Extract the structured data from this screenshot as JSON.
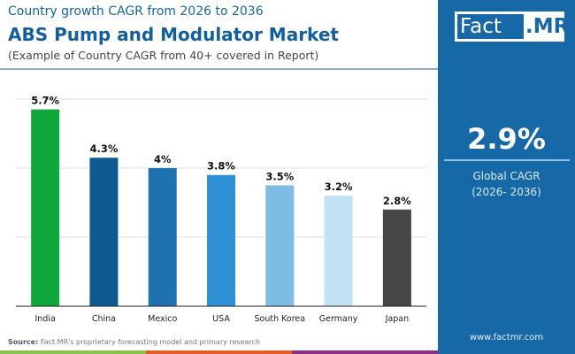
{
  "header": {
    "subtitle": "Country growth CAGR from 2026 to 2036",
    "title": "ABS Pump and Modulator Market",
    "note": "(Example of Country CAGR from 40+ covered in Report)"
  },
  "logo": {
    "text_a": "Fact",
    "text_b": ".MR"
  },
  "global": {
    "value": "2.9%",
    "label": "Global CAGR",
    "period": "(2026- 2036)"
  },
  "footer": {
    "source_label": "Source:",
    "source_text": "Fact.MR's proprietary forecasting model and primary research",
    "url": "www.factmr.com"
  },
  "colors": {
    "panel": "#1668a6",
    "stripe": [
      "#8cc04a",
      "#e35d2a",
      "#8a2f82"
    ]
  },
  "chart_data": {
    "type": "bar",
    "categories": [
      "India",
      "China",
      "Mexico",
      "USA",
      "South Korea",
      "Germany",
      "Japan"
    ],
    "values": [
      5.7,
      4.3,
      4,
      3.8,
      3.5,
      3.2,
      2.8
    ],
    "labels": [
      "5.7%",
      "4.3%",
      "4%",
      "3.8%",
      "3.5%",
      "3.2%",
      "2.8%"
    ],
    "colors": [
      "#10a83b",
      "#0d5a91",
      "#1e72b0",
      "#2f90d6",
      "#7dbde3",
      "#c0e2f2",
      "#464646"
    ],
    "ylim": [
      0,
      6.1
    ],
    "gridlines": [
      2,
      4,
      6
    ],
    "grid": true
  }
}
